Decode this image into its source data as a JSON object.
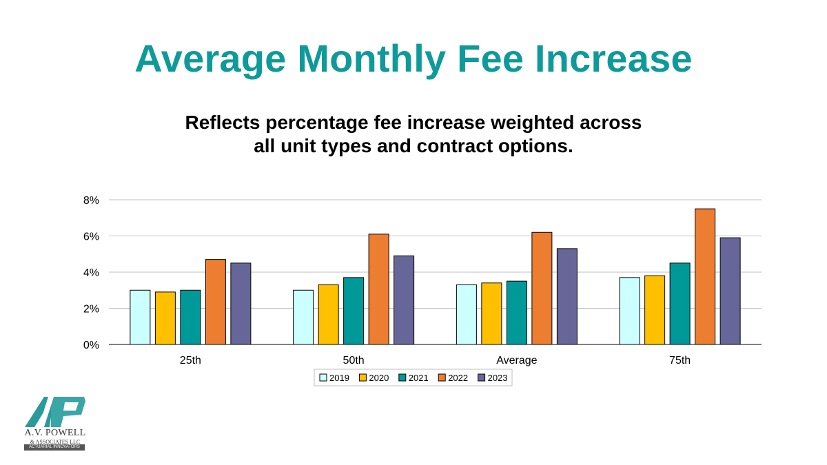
{
  "header": {
    "title": "Average Monthly Fee Increase",
    "subtitle_line1": "Reflects percentage fee increase weighted across",
    "subtitle_line2": "all unit types and contract options."
  },
  "logo": {
    "name": "A.V. POWELL",
    "sub": "& ASSOCIATES LLC",
    "tagline": "ACTUARIAL INNOVATORS"
  },
  "colors": {
    "title": "#0F9A9A",
    "grid": "#BFBFBF",
    "axis": "#000000"
  },
  "chart_data": {
    "type": "bar",
    "categories": [
      "25th",
      "50th",
      "Average",
      "75th"
    ],
    "series": [
      {
        "name": "2019",
        "color": "#CCFFFF",
        "values": [
          3.0,
          3.0,
          3.3,
          3.7
        ]
      },
      {
        "name": "2020",
        "color": "#FFC000",
        "values": [
          2.9,
          3.3,
          3.4,
          3.8
        ]
      },
      {
        "name": "2021",
        "color": "#009999",
        "values": [
          3.0,
          3.7,
          3.5,
          4.5
        ]
      },
      {
        "name": "2022",
        "color": "#ED7D31",
        "values": [
          4.7,
          6.1,
          6.2,
          7.5
        ]
      },
      {
        "name": "2023",
        "color": "#666699",
        "values": [
          4.5,
          4.9,
          5.3,
          5.9
        ]
      }
    ],
    "y_ticks": [
      "0%",
      "2%",
      "4%",
      "6%",
      "8%"
    ],
    "ylim": [
      0,
      8
    ],
    "grid": true,
    "legend_position": "bottom"
  }
}
